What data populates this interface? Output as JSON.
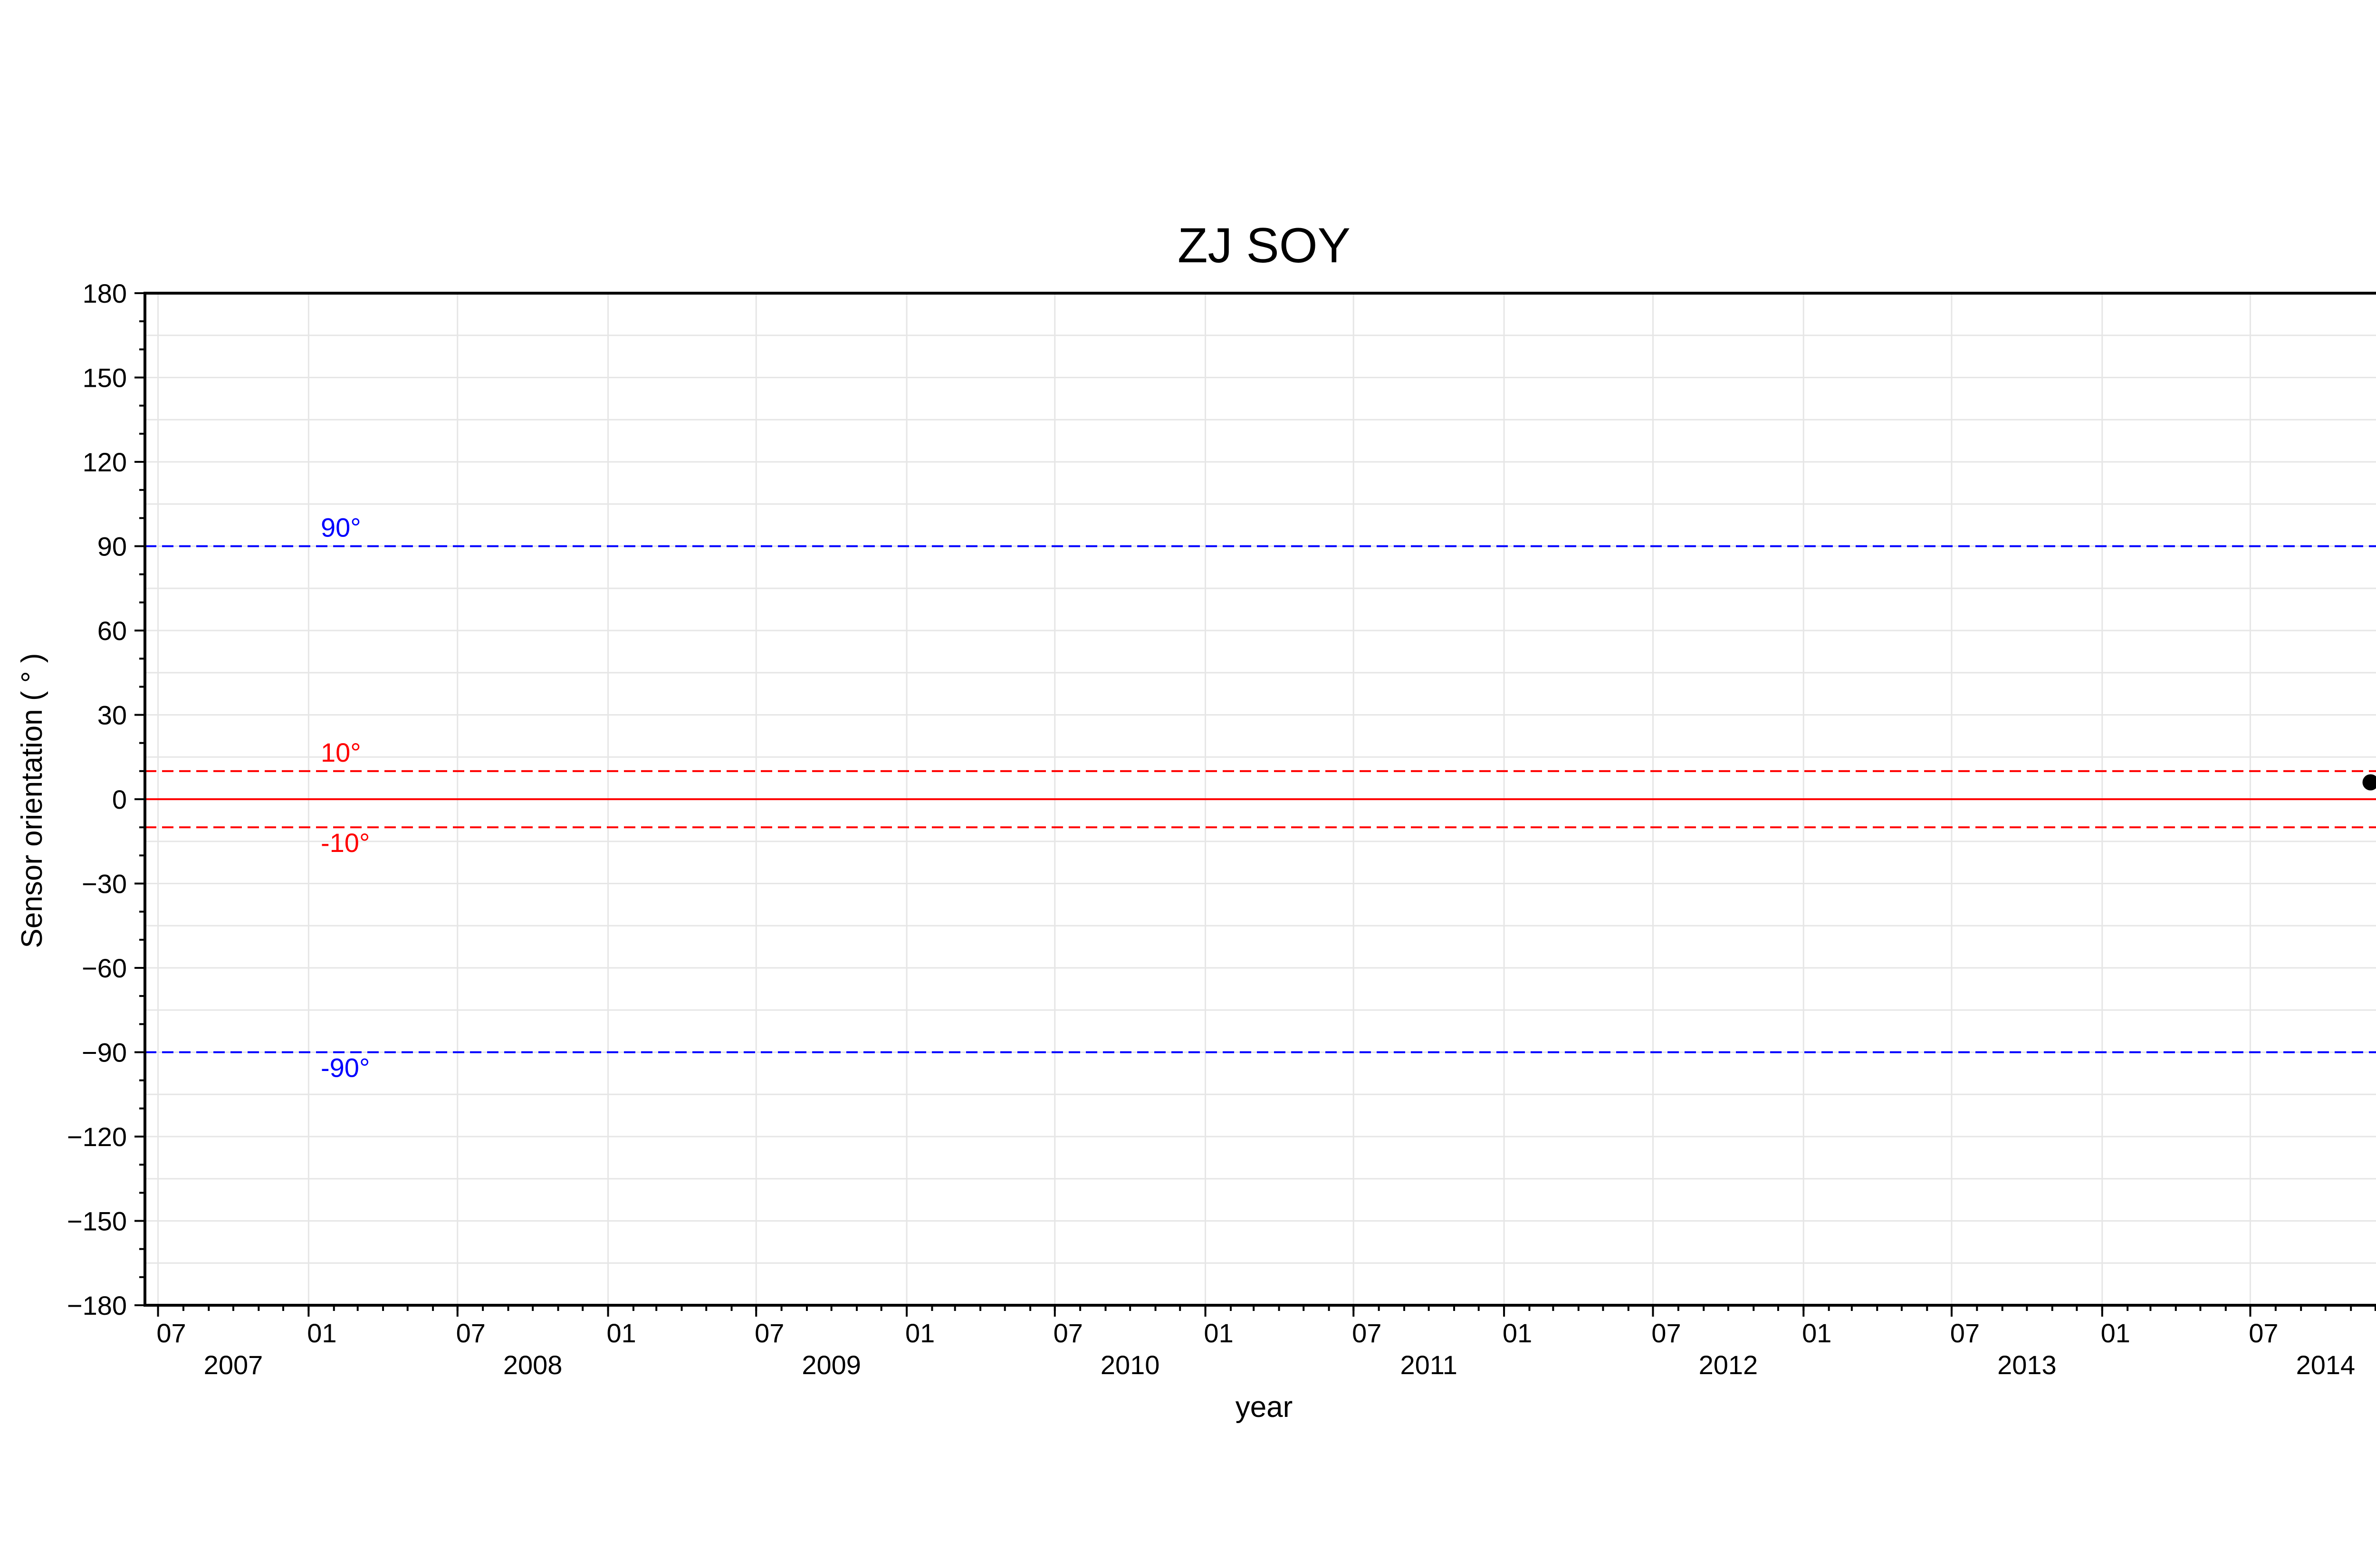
{
  "chart_data": {
    "type": "scatter",
    "title": "ZJ SOY",
    "xlabel": "year",
    "ylabel": "Sensor orientation ( ° )",
    "xlim": [
      "2007-06-15",
      "2014-12-15"
    ],
    "ylim": [
      -180,
      180
    ],
    "yticks": [
      "180",
      "150",
      "120",
      "90",
      "60",
      "30",
      "0",
      "−30",
      "−60",
      "−90",
      "−120",
      "−150",
      "−180"
    ],
    "ytick_values": [
      180,
      150,
      120,
      90,
      60,
      30,
      0,
      -30,
      -60,
      -90,
      -120,
      -150,
      -180
    ],
    "xticks": [
      {
        "date": "2007-07-01",
        "month": "07",
        "year": "2007"
      },
      {
        "date": "2008-01-01",
        "month": "01",
        "year": ""
      },
      {
        "date": "2008-07-01",
        "month": "07",
        "year": "2008"
      },
      {
        "date": "2009-01-01",
        "month": "01",
        "year": ""
      },
      {
        "date": "2009-07-01",
        "month": "07",
        "year": "2009"
      },
      {
        "date": "2010-01-01",
        "month": "01",
        "year": ""
      },
      {
        "date": "2010-07-01",
        "month": "07",
        "year": "2010"
      },
      {
        "date": "2011-01-01",
        "month": "01",
        "year": ""
      },
      {
        "date": "2011-07-01",
        "month": "07",
        "year": "2011"
      },
      {
        "date": "2012-01-01",
        "month": "01",
        "year": ""
      },
      {
        "date": "2012-07-01",
        "month": "07",
        "year": "2012"
      },
      {
        "date": "2013-01-01",
        "month": "01",
        "year": ""
      },
      {
        "date": "2013-07-01",
        "month": "07",
        "year": "2013"
      },
      {
        "date": "2014-01-01",
        "month": "01",
        "year": ""
      },
      {
        "date": "2014-07-01",
        "month": "07",
        "year": "2014"
      }
    ],
    "grid": true,
    "reference_lines": [
      {
        "y": 90,
        "label": "90°",
        "color": "#0000ff",
        "style": "dashed"
      },
      {
        "y": 10,
        "label": "10°",
        "color": "#ff0000",
        "style": "dashed"
      },
      {
        "y": 0,
        "label": "",
        "color": "#ff0000",
        "style": "solid"
      },
      {
        "y": -10,
        "label": "-10°",
        "color": "#ff0000",
        "style": "dashed"
      },
      {
        "y": -90,
        "label": "-90°",
        "color": "#0000ff",
        "style": "dashed"
      }
    ],
    "points": [
      {
        "x": "2014-11-25",
        "y": 6,
        "color": "#000000"
      }
    ]
  }
}
